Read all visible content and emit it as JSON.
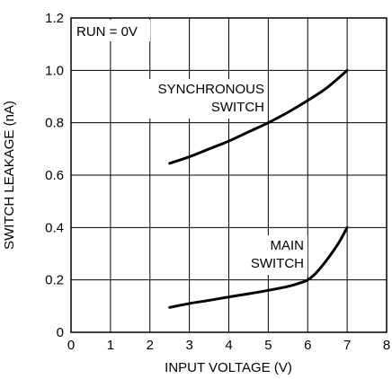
{
  "chart_data": {
    "type": "line",
    "title": "",
    "xlabel": "INPUT VOLTAGE (V)",
    "ylabel": "SWITCH LEAKAGE (nA)",
    "xlim": [
      0,
      8
    ],
    "ylim": [
      0,
      1.2
    ],
    "x_ticks": [
      0,
      1,
      2,
      3,
      4,
      5,
      6,
      7,
      8
    ],
    "y_ticks": [
      0,
      0.2,
      0.4,
      0.6,
      0.8,
      1.0,
      1.2
    ],
    "x_tick_labels": [
      "0",
      "1",
      "2",
      "3",
      "4",
      "5",
      "6",
      "7",
      "8"
    ],
    "y_tick_labels": [
      "0",
      "0.2",
      "0.4",
      "0.6",
      "0.8",
      "1.0",
      "1.2"
    ],
    "grid": true,
    "legend": "none",
    "series": [
      {
        "name": "SYNCHRONOUS SWITCH",
        "x": [
          2.5,
          3.0,
          3.5,
          4.0,
          4.5,
          5.0,
          5.5,
          6.0,
          6.5,
          7.0
        ],
        "y": [
          0.645,
          0.67,
          0.7,
          0.73,
          0.765,
          0.8,
          0.84,
          0.885,
          0.935,
          1.0
        ]
      },
      {
        "name": "MAIN SWITCH",
        "x": [
          2.5,
          3.0,
          3.5,
          4.0,
          4.5,
          5.0,
          5.5,
          5.8,
          6.0,
          6.2,
          6.4,
          6.6,
          6.8,
          7.0
        ],
        "y": [
          0.095,
          0.11,
          0.122,
          0.135,
          0.147,
          0.16,
          0.175,
          0.188,
          0.2,
          0.225,
          0.26,
          0.3,
          0.345,
          0.4
        ]
      }
    ],
    "annotations": {
      "condition": "RUN = 0V",
      "sync_label_line1": "SYNCHRONOUS",
      "sync_label_line2": "SWITCH",
      "main_label_line1": "MAIN",
      "main_label_line2": "SWITCH"
    }
  }
}
